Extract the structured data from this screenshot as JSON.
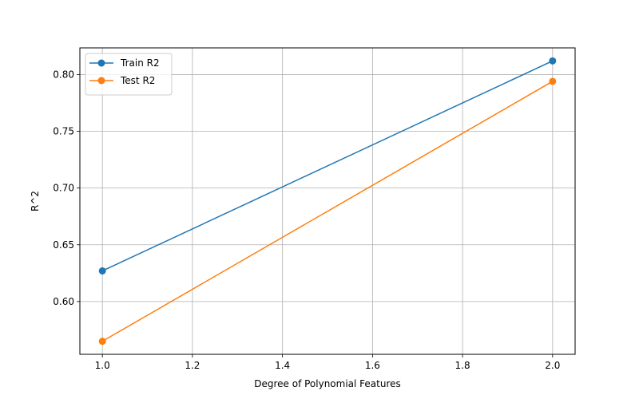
{
  "chart_data": {
    "type": "line",
    "title": "",
    "xlabel": "Degree of Polynomial Features",
    "ylabel": "R^2",
    "xlim": [
      0.95,
      2.05
    ],
    "ylim": [
      0.5535,
      0.8235
    ],
    "xticks": [
      "1.0",
      "1.2",
      "1.4",
      "1.6",
      "1.8",
      "2.0"
    ],
    "yticks": [
      "0.60",
      "0.65",
      "0.70",
      "0.75",
      "0.80"
    ],
    "grid": true,
    "legend_position": "top-left",
    "series": [
      {
        "name": "Train R2",
        "color": "#1f77b4",
        "marker": "circle",
        "x": [
          1.0,
          2.0
        ],
        "y": [
          0.627,
          0.812
        ]
      },
      {
        "name": "Test R2",
        "color": "#ff7f0e",
        "marker": "circle",
        "x": [
          1.0,
          2.0
        ],
        "y": [
          0.565,
          0.794
        ]
      }
    ]
  }
}
